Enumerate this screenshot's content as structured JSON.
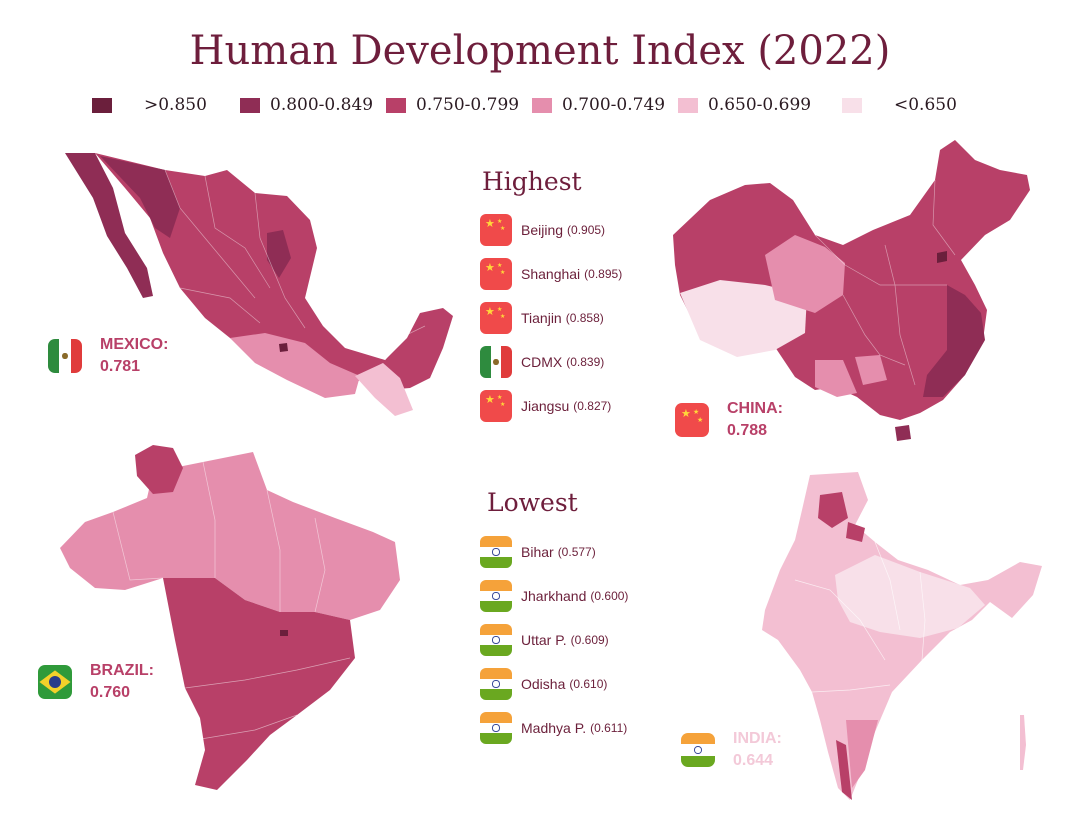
{
  "title": "Human Development Index (2022)",
  "legend": [
    {
      "label": ">0.850",
      "color": "#6b1f3c"
    },
    {
      "label": "0.800-0.849",
      "color": "#8f2d55"
    },
    {
      "label": "0.750-0.799",
      "color": "#b84068"
    },
    {
      "label": "0.700-0.749",
      "color": "#e58ead"
    },
    {
      "label": "0.650-0.699",
      "color": "#f3bfd2"
    },
    {
      "label": "<0.650",
      "color": "#f8e0e9"
    }
  ],
  "highest": {
    "title": "Highest",
    "items": [
      {
        "name": "Beijing",
        "value": "(0.905)",
        "flag": "china-flag-icon"
      },
      {
        "name": "Shanghai",
        "value": "(0.895)",
        "flag": "china-flag-icon"
      },
      {
        "name": "Tianjin",
        "value": "(0.858)",
        "flag": "china-flag-icon"
      },
      {
        "name": "CDMX",
        "value": "(0.839)",
        "flag": "mexico-flag-icon"
      },
      {
        "name": "Jiangsu",
        "value": "(0.827)",
        "flag": "china-flag-icon"
      }
    ]
  },
  "lowest": {
    "title": "Lowest",
    "items": [
      {
        "name": "Bihar",
        "value": "(0.577)",
        "flag": "india-flag-icon"
      },
      {
        "name": "Jharkhand",
        "value": "(0.600)",
        "flag": "india-flag-icon"
      },
      {
        "name": "Uttar P.",
        "value": "(0.609)",
        "flag": "india-flag-icon"
      },
      {
        "name": "Odisha",
        "value": "(0.610)",
        "flag": "india-flag-icon"
      },
      {
        "name": "Madhya P.",
        "value": "(0.611)",
        "flag": "india-flag-icon"
      }
    ]
  },
  "countries": {
    "mexico": {
      "name": "MEXICO:",
      "value": "0.781",
      "color": "#b84068",
      "flag": "mexico-flag-icon"
    },
    "china": {
      "name": "CHINA:",
      "value": "0.788",
      "color": "#b84068",
      "flag": "china-flag-icon"
    },
    "brazil": {
      "name": "BRAZIL:",
      "value": "0.760",
      "color": "#b84068",
      "flag": "brazil-flag-icon"
    },
    "india": {
      "name": "INDIA:",
      "value": "0.644",
      "color": "#f3c9d8",
      "flag": "india-flag-icon"
    }
  }
}
